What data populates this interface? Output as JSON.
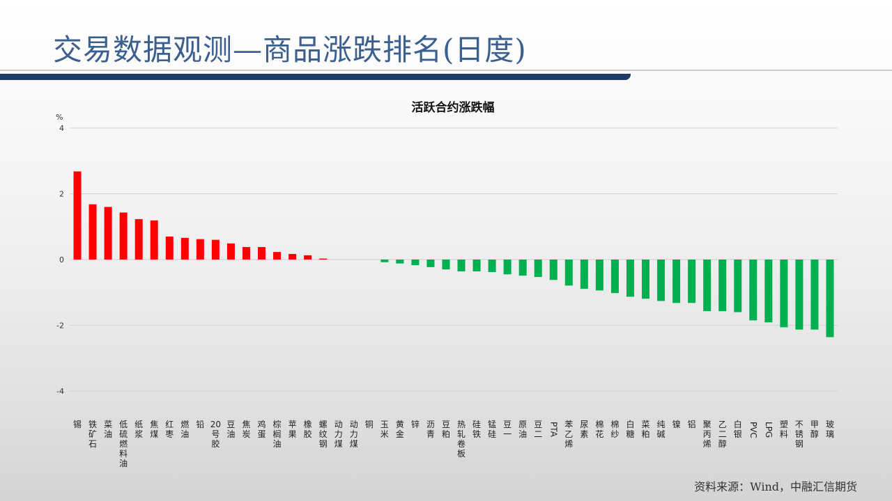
{
  "page": {
    "title": "交易数据观测—商品涨跌排名(日度)",
    "source": "资料来源：Wind，中融汇信期货"
  },
  "colors": {
    "up": "#ff0000",
    "down": "#00b050",
    "title": "#3b5f8f"
  },
  "chart_data": {
    "type": "bar",
    "title": "活跃合约涨跌幅",
    "ylabel": "%",
    "ylim": [
      -4,
      4
    ],
    "yticks": [
      -4,
      -2,
      0,
      2,
      4
    ],
    "grid": true,
    "categories": [
      "锡",
      "铁矿石",
      "菜油",
      "低硫燃料油",
      "纸浆",
      "焦煤",
      "红枣",
      "燃油",
      "铅",
      "20号胶",
      "豆油",
      "焦炭",
      "鸡蛋",
      "棕榈油",
      "苹果",
      "橡胶",
      "螺纹钢",
      "动力煤",
      "动力煤",
      "铜",
      "玉米",
      "黄金",
      "锌",
      "沥青",
      "豆粕",
      "热轧卷板",
      "硅铁",
      "锰硅",
      "豆一",
      "原油",
      "豆二",
      "PTA",
      "苯乙烯",
      "尿素",
      "棉花",
      "棉纱",
      "白糖",
      "菜粕",
      "纯碱",
      "镍",
      "铝",
      "聚丙烯",
      "乙二醇",
      "白银",
      "PVC",
      "LPG",
      "塑料",
      "不锈钢",
      "甲醇",
      "玻璃"
    ],
    "values": [
      2.68,
      1.68,
      1.6,
      1.43,
      1.23,
      1.19,
      0.7,
      0.66,
      0.62,
      0.6,
      0.49,
      0.38,
      0.38,
      0.23,
      0.17,
      0.13,
      0.03,
      0,
      0,
      0,
      -0.08,
      -0.12,
      -0.17,
      -0.23,
      -0.3,
      -0.36,
      -0.36,
      -0.38,
      -0.45,
      -0.49,
      -0.53,
      -0.62,
      -0.79,
      -0.89,
      -0.94,
      -1.02,
      -1.13,
      -1.19,
      -1.26,
      -1.32,
      -1.32,
      -1.57,
      -1.57,
      -1.6,
      -1.85,
      -1.91,
      -2.06,
      -2.13,
      -2.13,
      -2.36
    ]
  }
}
